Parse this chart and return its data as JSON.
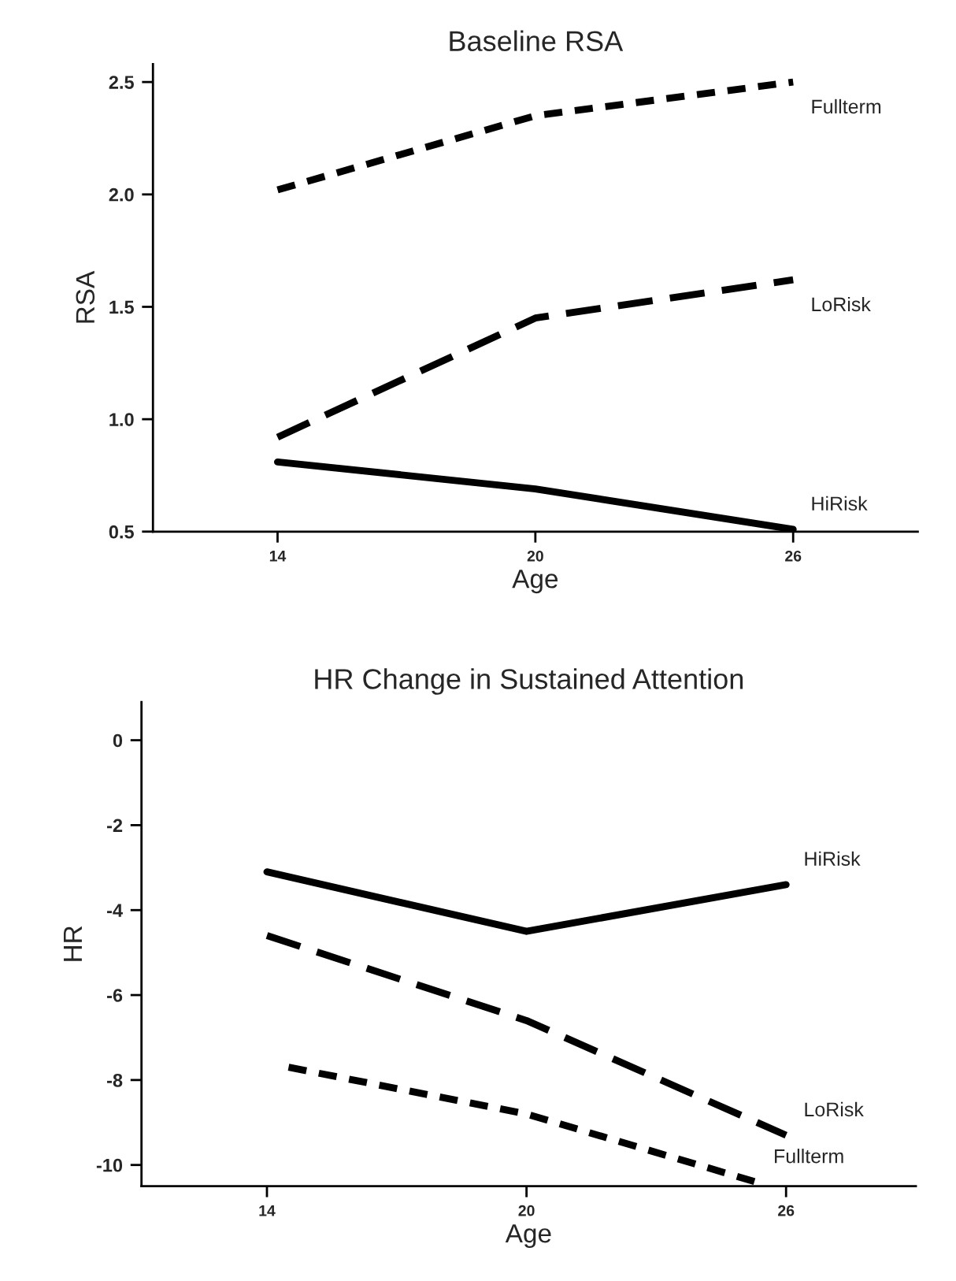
{
  "chart_data": [
    {
      "type": "line",
      "title": "Baseline RSA",
      "xlabel": "Age",
      "ylabel": "RSA",
      "x": [
        14,
        20,
        26
      ],
      "xlim": [
        11.1,
        28.9
      ],
      "xticks": [
        14,
        20,
        26
      ],
      "ylim": [
        0.5,
        2.58
      ],
      "yticks": [
        0.5,
        {
          "value": 1,
          "label": "1.0"
        },
        1.5,
        {
          "value": 2,
          "label": "2.0"
        },
        2.5
      ],
      "grid": false,
      "legend": false,
      "marker": "none",
      "series": [
        {
          "name": "Fullterm",
          "color": "#000000",
          "line_style": "dotted",
          "values": [
            2.02,
            2.35,
            2.5
          ]
        },
        {
          "name": "LoRisk",
          "color": "#000000",
          "line_style": "dashed",
          "values": [
            0.92,
            1.45,
            1.62
          ]
        },
        {
          "name": "HiRisk",
          "color": "#000000",
          "line_style": "solid",
          "values": [
            0.81,
            0.69,
            0.51
          ]
        }
      ]
    },
    {
      "type": "line",
      "title": "HR Change in Sustained Attention",
      "xlabel": "Age",
      "ylabel": "HR",
      "x": [
        14,
        20,
        26
      ],
      "xlim": [
        11.1,
        29.0
      ],
      "xticks": [
        14,
        20,
        26
      ],
      "ylim": [
        -10.5,
        0.9
      ],
      "yticks": [
        -10,
        -8,
        -6,
        -4,
        -2,
        0
      ],
      "grid": false,
      "legend": false,
      "marker": "none",
      "series": [
        {
          "name": "HiRisk",
          "color": "#000000",
          "line_style": "solid",
          "values": [
            -3.1,
            -4.5,
            -3.4
          ]
        },
        {
          "name": "LoRisk",
          "color": "#000000",
          "line_style": "dashed",
          "values": [
            -4.6,
            -6.6,
            -9.3
          ]
        },
        {
          "name": "Fullterm",
          "color": "#000000",
          "line_style": "dotted",
          "x": [
            14.5,
            20,
            25.3
          ],
          "values": [
            -7.7,
            -8.8,
            -10.4
          ]
        }
      ]
    }
  ]
}
